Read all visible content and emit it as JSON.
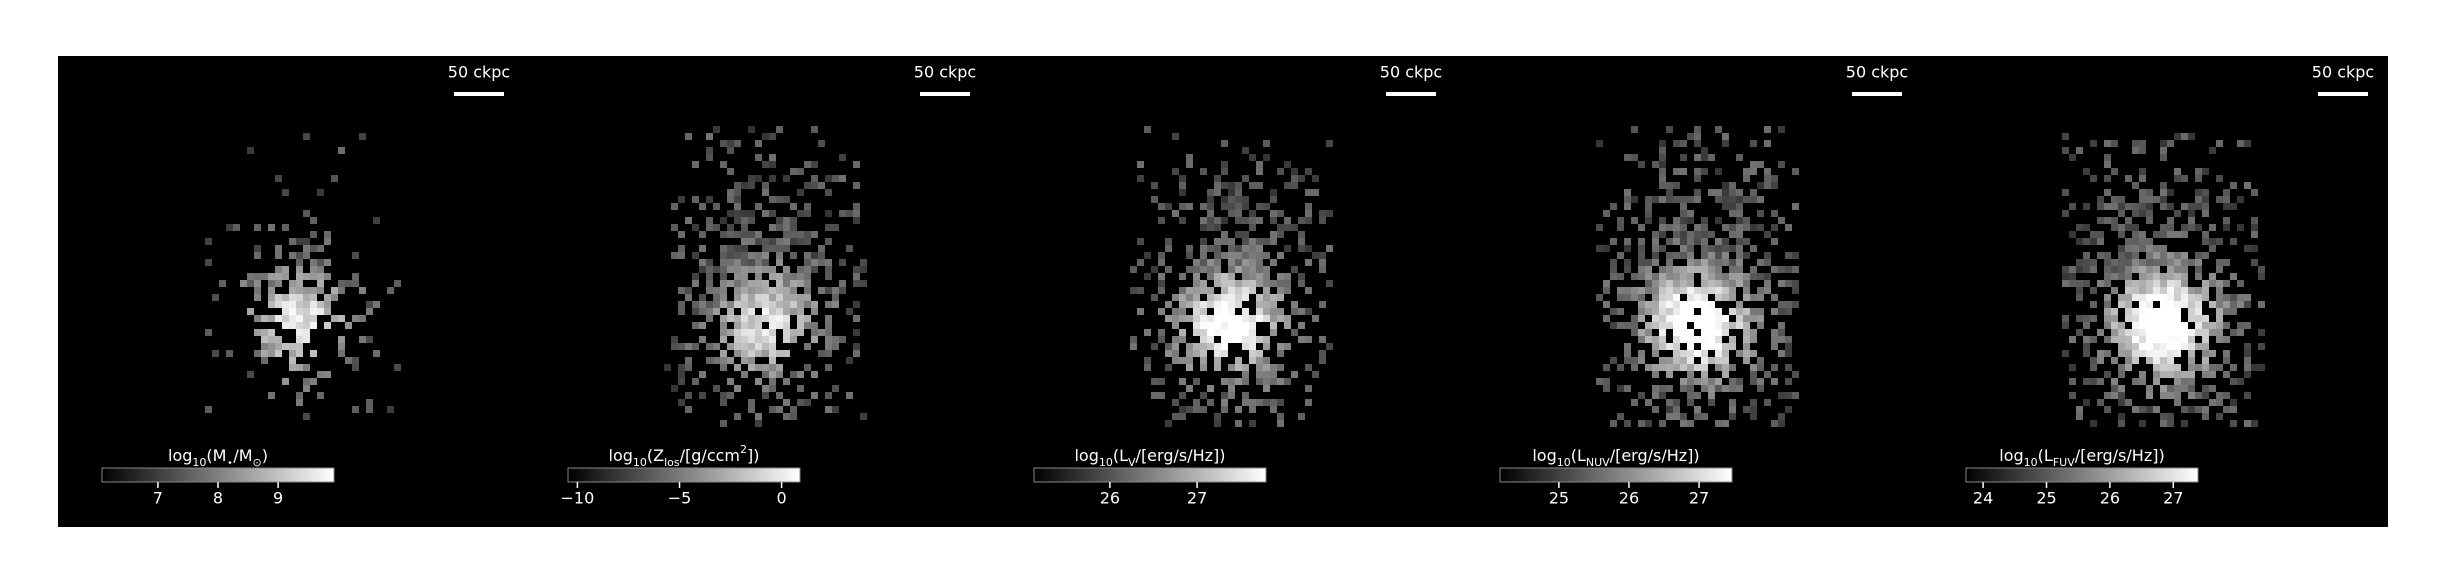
{
  "panels": [
    {
      "scale_bar": "50 ckpc",
      "colorbar": {
        "label": "log_{10}(M_{⋆}/M_{⊙})",
        "lim": [
          6.07,
          9.93
        ],
        "ticks": [
          7,
          8,
          9
        ]
      }
    },
    {
      "scale_bar": "50 ckpc",
      "colorbar": {
        "label": "log_{10}(Z_{los}/[g/ccm^{2}])",
        "lim": [
          -10.46,
          0.9
        ],
        "ticks": [
          {
            "value": -10,
            "label": "−10"
          },
          {
            "value": -5,
            "label": "−5"
          },
          0
        ]
      }
    },
    {
      "scale_bar": "50 ckpc",
      "colorbar": {
        "label": "log_{10}(L_{V}/[erg/s/Hz])",
        "lim": [
          25.13,
          27.79
        ],
        "ticks": [
          26,
          27
        ]
      }
    },
    {
      "scale_bar": "50 ckpc",
      "colorbar": {
        "label": "log_{10}(L_{NUV}/[erg/s/Hz])",
        "lim": [
          24.16,
          27.47
        ],
        "ticks": [
          25,
          26,
          27
        ]
      }
    },
    {
      "scale_bar": "50 ckpc",
      "colorbar": {
        "label": "log_{10}(L_{FUV}/[erg/s/Hz])",
        "lim": [
          23.73,
          27.39
        ],
        "ticks": [
          24,
          25,
          26,
          27
        ]
      }
    }
  ]
}
